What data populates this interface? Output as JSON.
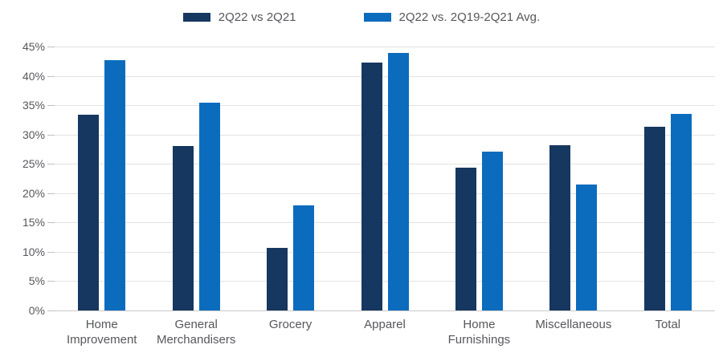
{
  "chart_data": {
    "type": "bar",
    "title": "",
    "xlabel": "",
    "ylabel": "",
    "categories": [
      "Home Improvement",
      "General Merchandisers",
      "Grocery",
      "Apparel",
      "Home Furnishings",
      "Miscellaneous",
      "Total"
    ],
    "category_labels": [
      "Home\nImprovement",
      "General\nMerchandisers",
      "Grocery",
      "Apparel",
      "Home\nFurnishings",
      "Miscellaneous",
      "Total"
    ],
    "series": [
      {
        "name": "2Q22 vs 2Q21",
        "color": "#16375f",
        "values": [
          33.4,
          28.0,
          10.7,
          42.2,
          24.3,
          28.2,
          31.3
        ]
      },
      {
        "name": "2Q22 vs. 2Q19-2Q21 Avg.",
        "color": "#0b6cbe",
        "values": [
          42.7,
          35.4,
          17.9,
          43.9,
          27.1,
          21.5,
          33.5
        ]
      }
    ],
    "ylim": [
      0,
      45
    ],
    "ytick_step": 5,
    "yticks": [
      "0%",
      "5%",
      "10%",
      "15%",
      "20%",
      "25%",
      "30%",
      "35%",
      "40%",
      "45%"
    ],
    "grid": true,
    "legend_position": "top"
  },
  "colors": {
    "series_dark": "#16375f",
    "series_light": "#0b6cbe",
    "gridline": "#e2e2e2",
    "axis_line": "#c9c9c9",
    "text": "#56575b",
    "background": "#ffffff"
  }
}
